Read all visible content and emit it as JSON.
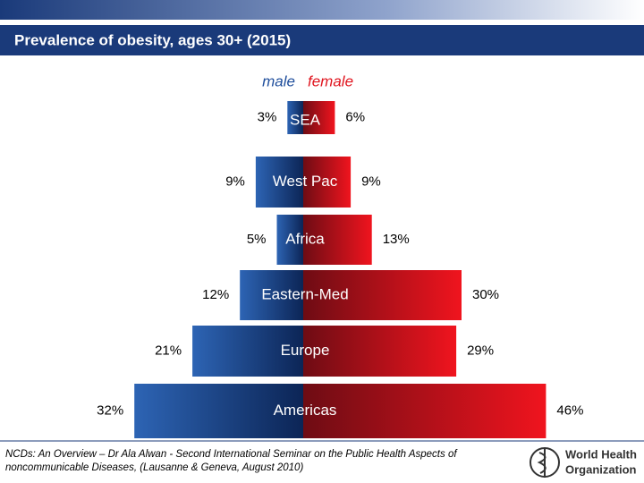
{
  "chart_data": {
    "type": "pyramid",
    "title": "Prevalence of obesity, ages 30+ (2015)",
    "categories": [
      "SEA",
      "West Pac",
      "Africa",
      "Eastern-Med",
      "Europe",
      "Americas"
    ],
    "series": [
      {
        "name": "male",
        "color": "#1f4e9c",
        "values": [
          3,
          9,
          5,
          12,
          21,
          32
        ],
        "value_labels": [
          "3%",
          "9%",
          "5%",
          "12%",
          "21%",
          "32%"
        ]
      },
      {
        "name": "female",
        "color": "#e0141e",
        "values": [
          6,
          9,
          13,
          30,
          29,
          46
        ],
        "value_labels": [
          "6%",
          "9%",
          "13%",
          "30%",
          "29%",
          "46%"
        ]
      }
    ]
  },
  "footer": {
    "source": [
      "NCDs: An Overview – Dr Ala Alwan - Second International Seminar on the Public Health Aspects of",
      "noncommunicable Diseases, (Lausanne & Geneva, August 2010)"
    ],
    "logo": [
      "World Health",
      "Organization"
    ]
  }
}
